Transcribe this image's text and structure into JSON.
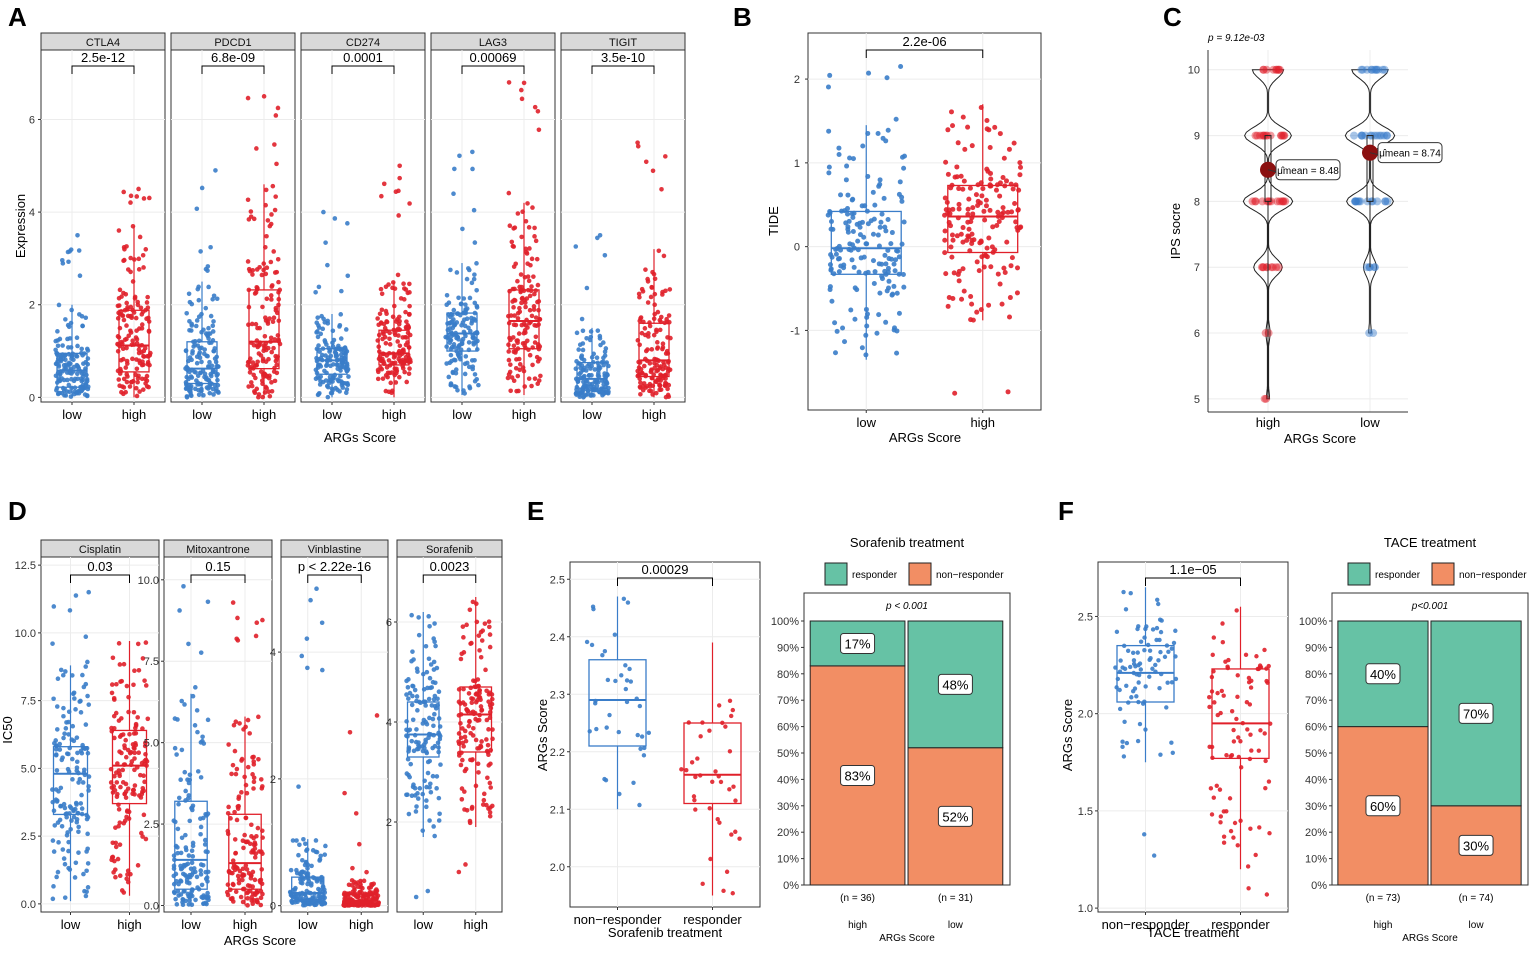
{
  "figure": {
    "panel_letters": [
      "A",
      "B",
      "C",
      "D",
      "E",
      "F"
    ],
    "colors": {
      "low": "#3a7dc9",
      "high": "#e0202a",
      "responder": "#66c2a5",
      "non_responder": "#f28e64",
      "strip": "#d9d9d9",
      "grid": "#ececec",
      "ips_mean": "#8b1010"
    }
  },
  "chart_data": [
    {
      "id": "A",
      "type": "boxplot",
      "xlabel": "ARGs Score",
      "ylabel": "Expression",
      "ylim": [
        -0.1,
        7.5
      ],
      "yticks": [
        0,
        2,
        4,
        6
      ],
      "categories": [
        "low",
        "high"
      ],
      "facets": [
        {
          "name": "CTLA4",
          "p": "2.5e-12",
          "boxes": [
            {
              "group": "low",
              "min": 0.0,
              "q1": 0.22,
              "median": 0.58,
              "q3": 0.95,
              "max": 2.0,
              "max_out": 3.5
            },
            {
              "group": "high",
              "min": 0.0,
              "q1": 0.55,
              "median": 1.12,
              "q3": 1.88,
              "max": 3.7,
              "max_out": 4.5
            }
          ]
        },
        {
          "name": "PDCD1",
          "p": "6.8e-09",
          "boxes": [
            {
              "group": "low",
              "min": 0.0,
              "q1": 0.3,
              "median": 0.62,
              "q3": 1.2,
              "max": 2.5,
              "max_out": 4.9
            },
            {
              "group": "high",
              "min": 0.0,
              "q1": 0.62,
              "median": 1.2,
              "q3": 2.32,
              "max": 4.6,
              "max_out": 6.5
            }
          ]
        },
        {
          "name": "CD274",
          "p": "0.0001",
          "boxes": [
            {
              "group": "low",
              "min": 0.0,
              "q1": 0.5,
              "median": 0.8,
              "q3": 1.05,
              "max": 1.8,
              "max_out": 4.0
            },
            {
              "group": "high",
              "min": 0.0,
              "q1": 0.7,
              "median": 0.95,
              "q3": 1.45,
              "max": 2.5,
              "max_out": 5.0
            }
          ]
        },
        {
          "name": "LAG3",
          "p": "0.00069",
          "boxes": [
            {
              "group": "low",
              "min": 0.05,
              "q1": 1.0,
              "median": 1.38,
              "q3": 1.82,
              "max": 2.9,
              "max_out": 5.3
            },
            {
              "group": "high",
              "min": 0.05,
              "q1": 1.05,
              "median": 1.65,
              "q3": 2.32,
              "max": 4.2,
              "max_out": 6.8
            }
          ]
        },
        {
          "name": "TIGIT",
          "p": "3.5e-10",
          "boxes": [
            {
              "group": "low",
              "min": 0.0,
              "q1": 0.2,
              "median": 0.4,
              "q3": 0.75,
              "max": 1.5,
              "max_out": 3.5
            },
            {
              "group": "high",
              "min": 0.0,
              "q1": 0.45,
              "median": 0.8,
              "q3": 1.6,
              "max": 3.2,
              "max_out": 5.5
            }
          ]
        }
      ]
    },
    {
      "id": "B",
      "type": "boxplot",
      "xlabel": "ARGs Score",
      "ylabel": "TIDE",
      "ylim": [
        -1.95,
        2.55
      ],
      "yticks": [
        -1,
        0,
        1,
        2
      ],
      "categories": [
        "low",
        "high"
      ],
      "p": "2.2e-06",
      "boxes": [
        {
          "group": "low",
          "min": -1.35,
          "q1": -0.33,
          "median": -0.02,
          "q3": 0.42,
          "max": 1.45,
          "max_out": 2.15
        },
        {
          "group": "high",
          "min": -0.88,
          "q1": -0.07,
          "median": 0.36,
          "q3": 0.73,
          "max": 1.7,
          "min_out": -1.75
        }
      ]
    },
    {
      "id": "C",
      "type": "violin",
      "xlabel": "ARGs Score",
      "ylabel": "IPS socre",
      "subtitle": "p = 9.12e-03",
      "ylim": [
        4.8,
        10.3
      ],
      "yticks": [
        5,
        6,
        7,
        8,
        9,
        10
      ],
      "categories": [
        "high",
        "low"
      ],
      "means": [
        {
          "group": "high",
          "value": 8.48,
          "label": "μ̂mean = 8.48"
        },
        {
          "group": "low",
          "value": 8.74,
          "label": "μ̂mean = 8.74"
        }
      ],
      "distribution": [
        {
          "group": "high",
          "levels": [
            5,
            6,
            7,
            8,
            9,
            10
          ],
          "weights": [
            0.06,
            0.08,
            0.55,
            0.95,
            0.9,
            0.6
          ]
        },
        {
          "group": "low",
          "levels": [
            6,
            7,
            8,
            9,
            10
          ],
          "weights": [
            0.05,
            0.25,
            0.9,
            0.95,
            0.7
          ]
        }
      ]
    },
    {
      "id": "D",
      "type": "boxplot",
      "xlabel": "ARGs Score",
      "ylabel": "IC50",
      "categories": [
        "low",
        "high"
      ],
      "facets": [
        {
          "name": "Cisplatin",
          "p": "0.03",
          "ylim": [
            -0.3,
            12.8
          ],
          "yticks": [
            0.0,
            2.5,
            5.0,
            7.5,
            10.0,
            12.5
          ],
          "tick_labels": [
            "0.0",
            "2.5",
            "5.0",
            "7.5",
            "10.0",
            "12.5"
          ],
          "boxes": [
            {
              "group": "low",
              "min": 0.1,
              "q1": 3.3,
              "median": 4.8,
              "q3": 5.8,
              "max": 8.8,
              "max_out": 11.5
            },
            {
              "group": "high",
              "min": 0.3,
              "q1": 3.7,
              "median": 5.1,
              "q3": 6.4,
              "max": 9.7
            }
          ]
        },
        {
          "name": "Mitoxantrone",
          "p": "0.15",
          "ylim": [
            -0.2,
            10.7
          ],
          "yticks": [
            0.0,
            2.5,
            5.0,
            7.5,
            10.0
          ],
          "tick_labels": [
            "0.0",
            "2.5",
            "5.0",
            "7.5",
            "10.0"
          ],
          "boxes": [
            {
              "group": "low",
              "min": 0.0,
              "q1": 0.5,
              "median": 1.4,
              "q3": 3.2,
              "max": 6.5,
              "max_out": 9.8
            },
            {
              "group": "high",
              "min": 0.0,
              "q1": 0.5,
              "median": 1.3,
              "q3": 2.8,
              "max": 5.8,
              "max_out": 9.3
            }
          ]
        },
        {
          "name": "Vinblastine",
          "p": "p < 2.22e-16",
          "ylim": [
            -0.1,
            5.5
          ],
          "yticks": [
            0,
            2,
            4
          ],
          "tick_labels": [
            "0",
            "2",
            "4"
          ],
          "boxes": [
            {
              "group": "low",
              "min": 0.0,
              "q1": 0.08,
              "median": 0.2,
              "q3": 0.45,
              "max": 1.05,
              "max_out": 5.0
            },
            {
              "group": "high",
              "min": 0.0,
              "q1": 0.02,
              "median": 0.08,
              "q3": 0.18,
              "max": 0.4,
              "max_out": 3.0
            }
          ]
        },
        {
          "name": "Sorafenib",
          "p": "0.0023",
          "ylim": [
            0.2,
            7.3
          ],
          "yticks": [
            2,
            4,
            6
          ],
          "tick_labels": [
            "2",
            "4",
            "6"
          ],
          "boxes": [
            {
              "group": "low",
              "min": 1.7,
              "q1": 3.3,
              "median": 3.75,
              "q3": 4.4,
              "max": 6.2,
              "min_out": 0.5
            },
            {
              "group": "high",
              "min": 1.9,
              "q1": 3.4,
              "median": 4.15,
              "q3": 4.7,
              "max": 6.5,
              "min_out": 1.0
            }
          ]
        }
      ]
    },
    {
      "id": "E_box",
      "type": "boxplot",
      "xlabel": "Sorafenib treatment",
      "ylabel": "ARGs Score",
      "ylim": [
        1.93,
        2.53
      ],
      "yticks": [
        2.0,
        2.1,
        2.2,
        2.3,
        2.4,
        2.5
      ],
      "tick_labels": [
        "2.0",
        "2.1",
        "2.2",
        "2.3",
        "2.4",
        "2.5"
      ],
      "categories": [
        "non−responder",
        "responder"
      ],
      "p": "0.00029",
      "boxes": [
        {
          "group": "non-responder",
          "min": 2.1,
          "q1": 2.21,
          "median": 2.29,
          "q3": 2.36,
          "max": 2.47
        },
        {
          "group": "responder",
          "min": 1.95,
          "q1": 2.11,
          "median": 2.16,
          "q3": 2.25,
          "max": 2.39
        }
      ]
    },
    {
      "id": "E_bar",
      "type": "bar",
      "stacked": true,
      "title": "Sorafenib treatment",
      "legend": [
        "responder",
        "non−responder"
      ],
      "xlabel": "ARGs Score",
      "ylim": [
        0,
        100
      ],
      "yticks": [
        0,
        10,
        20,
        30,
        40,
        50,
        60,
        70,
        80,
        90,
        100
      ],
      "tick_labels": [
        "0%",
        "10%",
        "20%",
        "30%",
        "40%",
        "50%",
        "60%",
        "70%",
        "80%",
        "90%",
        "100%"
      ],
      "p": "p < 0.001",
      "categories": [
        "high",
        "low"
      ],
      "n_labels": [
        "(n = 36)",
        "(n = 31)"
      ],
      "series": [
        {
          "name": "non−responder",
          "values": [
            83,
            52
          ],
          "labels": [
            "83%",
            "52%"
          ]
        },
        {
          "name": "responder",
          "values": [
            17,
            48
          ],
          "labels": [
            "17%",
            "48%"
          ]
        }
      ]
    },
    {
      "id": "F_box",
      "type": "boxplot",
      "xlabel": "TACE treatment",
      "ylabel": "ARGs Score",
      "ylim": [
        0.98,
        2.78
      ],
      "yticks": [
        1.0,
        1.5,
        2.0,
        2.5
      ],
      "tick_labels": [
        "1.0",
        "1.5",
        "2.0",
        "2.5"
      ],
      "categories": [
        "non−responder",
        "responder"
      ],
      "p": "1.1e−05",
      "boxes": [
        {
          "group": "non-responder",
          "min": 1.75,
          "q1": 2.06,
          "median": 2.21,
          "q3": 2.35,
          "max": 2.65,
          "min_out": 1.27
        },
        {
          "group": "responder",
          "min": 1.2,
          "q1": 1.77,
          "median": 1.95,
          "q3": 2.23,
          "max": 2.55,
          "min_out": 1.07
        }
      ]
    },
    {
      "id": "F_bar",
      "type": "bar",
      "stacked": true,
      "title": "TACE treatment",
      "legend": [
        "responder",
        "non−responder"
      ],
      "xlabel": "ARGs Score",
      "ylim": [
        0,
        100
      ],
      "yticks": [
        0,
        10,
        20,
        30,
        40,
        50,
        60,
        70,
        80,
        90,
        100
      ],
      "tick_labels": [
        "0%",
        "10%",
        "20%",
        "30%",
        "40%",
        "50%",
        "60%",
        "70%",
        "80%",
        "90%",
        "100%"
      ],
      "p": "p<0.001",
      "categories": [
        "high",
        "low"
      ],
      "n_labels": [
        "(n = 73)",
        "(n = 74)"
      ],
      "series": [
        {
          "name": "non−responder",
          "values": [
            60,
            30
          ],
          "labels": [
            "60%",
            "30%"
          ]
        },
        {
          "name": "responder",
          "values": [
            40,
            70
          ],
          "labels": [
            "40%",
            "70%"
          ]
        }
      ]
    }
  ]
}
